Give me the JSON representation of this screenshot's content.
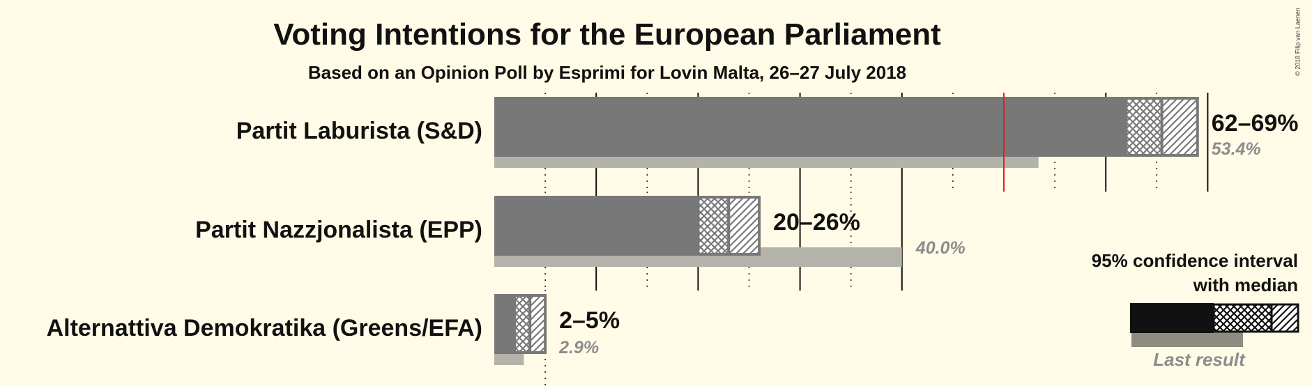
{
  "chart_data": {
    "type": "bar",
    "title": "Voting Intentions for the European Parliament",
    "subtitle": "Based on an Opinion Poll by Esprimi for Lovin Malta, 26–27 July 2018",
    "copyright": "© 2018 Filip van Laenen",
    "unit": "%",
    "majority_line": 50,
    "series": [
      {
        "name": "Partit Laburista (S&D)",
        "ci_low": 62,
        "median": 65.5,
        "ci_high": 69,
        "ci_label": "62–69%",
        "last_result": 53.4,
        "last_label": "53.4%"
      },
      {
        "name": "Partit Nazzjonalista (EPP)",
        "ci_low": 20,
        "median": 23,
        "ci_high": 26,
        "ci_label": "20–26%",
        "last_result": 40.0,
        "last_label": "40.0%"
      },
      {
        "name": "Alternattiva Demokratika (Greens/EFA)",
        "ci_low": 2,
        "median": 3.5,
        "ci_high": 5,
        "ci_label": "2–5%",
        "last_result": 2.9,
        "last_label": "2.9%"
      }
    ],
    "legend": {
      "line1": "95% confidence interval",
      "line2": "with median",
      "last_result_label": "Last result"
    },
    "colors": {
      "background": "#fffbe6",
      "bar": "#787878",
      "last_result": "#b3b3aa",
      "majority": "#e02020",
      "legend_bar": "#111111",
      "legend_last": "#8c8c80"
    }
  }
}
